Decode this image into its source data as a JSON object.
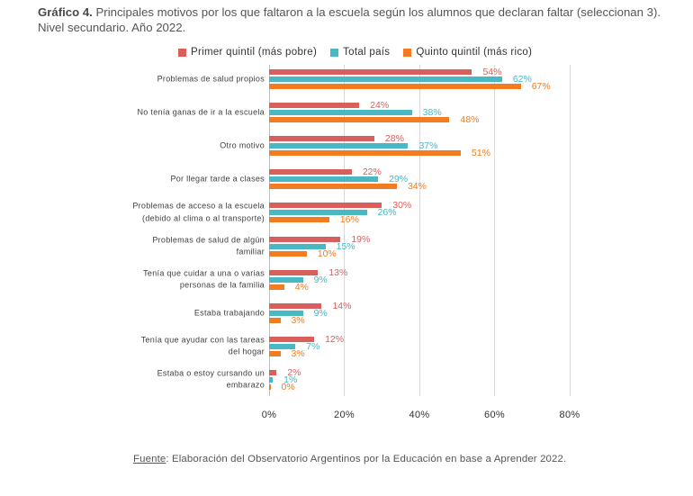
{
  "chart_data": {
    "type": "bar",
    "orientation": "horizontal",
    "title_label": "Gráfico 4.",
    "title": "Principales motivos por los que faltaron a la escuela según los alumnos que declaran faltar (seleccionan 3).\nNivel secundario. Año 2022.",
    "categories": [
      "Problemas de salud propios",
      "No tenía ganas de ir a la escuela",
      "Otro motivo",
      "Por llegar tarde a clases",
      "Problemas de acceso a la escuela\n(debido al clima o al transporte)",
      "Problemas de salud de algún\nfamiliar",
      "Tenía que cuidar a una o varias\npersonas de la familia",
      "Estaba trabajando",
      "Tenía que ayudar con las tareas\ndel hogar",
      "Estaba o estoy cursando un\nembarazo"
    ],
    "series": [
      {
        "name": "Primer quintil (más pobre)",
        "color": "#d95f5d",
        "values": [
          54,
          24,
          28,
          22,
          30,
          19,
          13,
          14,
          12,
          2
        ],
        "data_labels": [
          "54%",
          "24%",
          "28%",
          "22%",
          "30%",
          "19%",
          "13%",
          "14%",
          "12%",
          "2%"
        ]
      },
      {
        "name": "Total país",
        "color": "#4ab7c4",
        "values": [
          62,
          38,
          37,
          29,
          26,
          15,
          9,
          9,
          7,
          1
        ],
        "data_labels": [
          "62%",
          "38%",
          "37%",
          "29%",
          "26%",
          "15%",
          "9%",
          "9%",
          "7%",
          "1%"
        ]
      },
      {
        "name": "Quinto quintil (más rico)",
        "color": "#f47b1f",
        "values": [
          67,
          48,
          51,
          34,
          16,
          10,
          4,
          3,
          3,
          0
        ],
        "data_labels": [
          "67%",
          "48%",
          "51%",
          "34%",
          "16%",
          "10%",
          "4%",
          "3%",
          "3%",
          "0%"
        ]
      }
    ],
    "xlim": [
      0,
      80
    ],
    "x_ticks": [
      0,
      20,
      40,
      60,
      80
    ],
    "x_tick_labels": [
      "0%",
      "20%",
      "40%",
      "60%",
      "80%"
    ],
    "grid": "vertical",
    "legend": "top-center"
  },
  "source": {
    "label": "Fuente",
    "text": ": Elaboración del Observatorio Argentinos por la Educación en base a Aprender 2022."
  }
}
